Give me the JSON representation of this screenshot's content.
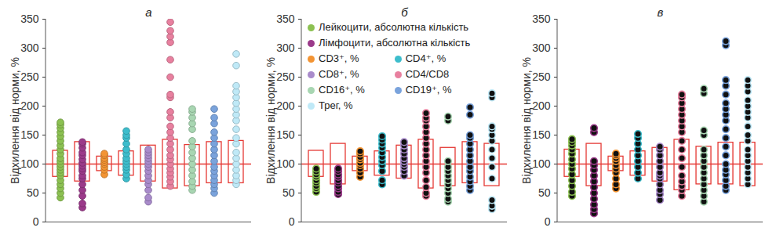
{
  "chart_data": [
    {
      "type": "strip",
      "title": "а",
      "y_label": "Відхилення від норми, %",
      "ylim": [
        0,
        350
      ],
      "yticks": [
        0,
        50,
        100,
        150,
        200,
        250,
        300,
        350
      ],
      "tick_labels": "y",
      "marker": "circle",
      "reference_line": 100,
      "series": [
        {
          "name": "Лейкоцити, абсолютна кількість",
          "color": "#8cc152",
          "range": [
            78,
            123
          ],
          "values": [
            42,
            50,
            58,
            65,
            72,
            80,
            85,
            90,
            95,
            100,
            105,
            110,
            118,
            125,
            132,
            140,
            148,
            155,
            162,
            168,
            172
          ]
        },
        {
          "name": "Лімфоцити, абсолютна кількість",
          "color": "#9b3a8a",
          "range": [
            70,
            138
          ],
          "values": [
            25,
            32,
            45,
            55,
            65,
            75,
            80,
            88,
            92,
            97,
            102,
            108,
            115,
            120,
            128,
            135,
            138
          ]
        },
        {
          "name": "CD3⁺, %",
          "color": "#f39433",
          "range": [
            88,
            113
          ],
          "values": [
            82,
            90,
            95,
            100,
            103,
            107,
            110,
            115,
            118
          ]
        },
        {
          "name": "CD4⁺, %",
          "color": "#3dbdcc",
          "range": [
            80,
            122
          ],
          "values": [
            75,
            82,
            90,
            95,
            100,
            105,
            110,
            118,
            125,
            135,
            145,
            150,
            157
          ]
        },
        {
          "name": "CD8⁺, %",
          "color": "#a98bcb",
          "range": [
            70,
            132
          ],
          "values": [
            35,
            42,
            55,
            65,
            72,
            80,
            88,
            95,
            100,
            105,
            110,
            115,
            120,
            125
          ]
        },
        {
          "name": "CD4/CD8",
          "color": "#e8809f",
          "range": [
            58,
            142
          ],
          "values": [
            62,
            70,
            78,
            85,
            92,
            100,
            108,
            115,
            125,
            135,
            145,
            155,
            165,
            180,
            190,
            215,
            220,
            250,
            280,
            310,
            320,
            330,
            345
          ]
        },
        {
          "name": "CD16⁺, %",
          "color": "#a8d6b2",
          "range": [
            62,
            133
          ],
          "values": [
            55,
            62,
            70,
            80,
            90,
            100,
            110,
            120,
            130,
            140,
            160,
            170,
            180,
            190,
            195
          ]
        },
        {
          "name": "CD19⁺, %",
          "color": "#7aa3dc",
          "range": [
            67,
            138
          ],
          "values": [
            50,
            58,
            65,
            72,
            80,
            88,
            95,
            105,
            115,
            125,
            135,
            145,
            155,
            170,
            180,
            195
          ]
        },
        {
          "name": "Трег, %",
          "color": "#bfe9f7",
          "range": [
            67,
            140
          ],
          "values": [
            65,
            72,
            80,
            90,
            100,
            110,
            120,
            135,
            145,
            160,
            175,
            185,
            195,
            205,
            215,
            225,
            235,
            270,
            290
          ]
        }
      ]
    },
    {
      "type": "strip",
      "title": "б",
      "y_label": "Відхилення від норми, %",
      "ylim": [
        0,
        350
      ],
      "yticks": [
        0,
        50,
        100,
        150,
        200,
        250,
        300,
        350
      ],
      "tick_labels": "y",
      "marker": "dark",
      "reference_line": 100,
      "legend": "top-left",
      "series": [
        {
          "name": "Лейкоцити, абсолютна кількість",
          "color": "#8cc152",
          "range": [
            78,
            123
          ],
          "values": [
            52,
            58,
            62,
            68,
            72,
            78,
            82,
            87,
            92
          ]
        },
        {
          "name": "Лімфоцити, абсолютна кількість",
          "color": "#9b3a8a",
          "range": [
            65,
            135
          ],
          "values": [
            48,
            52,
            58,
            62,
            68,
            72,
            78,
            82,
            88,
            92
          ]
        },
        {
          "name": "CD3⁺, %",
          "color": "#f39433",
          "range": [
            88,
            113
          ],
          "values": [
            78,
            85,
            92,
            98,
            102,
            108,
            112,
            118,
            122
          ]
        },
        {
          "name": "CD4⁺, %",
          "color": "#3dbdcc",
          "range": [
            80,
            122
          ],
          "values": [
            65,
            72,
            88,
            98,
            105,
            112,
            120,
            128,
            135,
            142,
            148
          ]
        },
        {
          "name": "CD8⁺, %",
          "color": "#a98bcb",
          "range": [
            75,
            132
          ],
          "values": [
            80,
            88,
            95,
            100,
            105,
            110,
            118,
            125,
            132,
            138
          ]
        },
        {
          "name": "CD4/CD8",
          "color": "#e8809f",
          "range": [
            58,
            142
          ],
          "values": [
            45,
            50,
            60,
            72,
            85,
            95,
            105,
            115,
            125,
            135,
            145,
            155,
            165,
            175,
            180,
            188
          ]
        },
        {
          "name": "CD16⁺, %",
          "color": "#a8d6b2",
          "range": [
            62,
            128
          ],
          "values": [
            35,
            40,
            50,
            58,
            65,
            72,
            80,
            88,
            95,
            105,
            175,
            182
          ]
        },
        {
          "name": "CD19⁺, %",
          "color": "#7aa3dc",
          "range": [
            67,
            138
          ],
          "values": [
            55,
            62,
            70,
            78,
            88,
            95,
            105,
            115,
            125,
            135,
            145,
            150,
            185,
            198
          ]
        },
        {
          "name": "Трег, %",
          "color": "#bfe9f7",
          "range": [
            62,
            135
          ],
          "values": [
            22,
            28,
            38,
            75,
            95,
            110,
            125,
            140,
            150,
            160,
            165,
            215,
            222
          ]
        }
      ]
    },
    {
      "type": "strip",
      "title": "в",
      "y_label": "Відхилення від норми, %",
      "ylim": [
        0,
        350
      ],
      "yticks": [
        0,
        50,
        100,
        150,
        200,
        250,
        300,
        350
      ],
      "tick_labels": "y",
      "marker": "dark",
      "reference_line": 100,
      "series": [
        {
          "name": "Лейкоцити, абсолютна кількість",
          "color": "#8cc152",
          "range": [
            78,
            125
          ],
          "values": [
            45,
            52,
            62,
            72,
            82,
            92,
            100,
            108,
            118,
            125,
            132,
            138,
            143
          ]
        },
        {
          "name": "Лімфоцити, абсолютна кількість",
          "color": "#9b3a8a",
          "range": [
            62,
            135
          ],
          "values": [
            15,
            22,
            30,
            40,
            50,
            60,
            70,
            80,
            90,
            98,
            105,
            155,
            162
          ]
        },
        {
          "name": "CD3⁺, %",
          "color": "#f39433",
          "range": [
            88,
            113
          ],
          "values": [
            58,
            65,
            75,
            85,
            92,
            98,
            105,
            110,
            115,
            118
          ]
        },
        {
          "name": "CD4⁺, %",
          "color": "#3dbdcc",
          "range": [
            80,
            122
          ],
          "values": [
            75,
            85,
            95,
            105,
            115,
            125,
            135,
            145,
            152
          ]
        },
        {
          "name": "CD8⁺, %",
          "color": "#a98bcb",
          "range": [
            70,
            128
          ],
          "values": [
            38,
            48,
            55,
            65,
            75,
            80,
            85,
            95,
            105,
            115,
            125,
            130
          ]
        },
        {
          "name": "CD4/CD8",
          "color": "#e8809f",
          "range": [
            55,
            142
          ],
          "values": [
            45,
            55,
            62,
            70,
            80,
            95,
            110,
            125,
            140,
            155,
            165,
            175,
            185,
            195,
            205,
            215,
            220
          ]
        },
        {
          "name": "CD16⁺, %",
          "color": "#a8d6b2",
          "range": [
            65,
            130
          ],
          "values": [
            35,
            45,
            55,
            65,
            75,
            85,
            95,
            105,
            115,
            125,
            150,
            158,
            222,
            230
          ]
        },
        {
          "name": "CD19⁺, %",
          "color": "#7aa3dc",
          "range": [
            65,
            137
          ],
          "values": [
            55,
            62,
            72,
            82,
            90,
            100,
            115,
            130,
            145,
            160,
            175,
            185,
            195,
            205,
            220,
            235,
            245,
            305,
            312
          ]
        },
        {
          "name": "Трег, %",
          "color": "#bfe9f7",
          "range": [
            62,
            137
          ],
          "values": [
            65,
            75,
            85,
            95,
            105,
            115,
            125,
            140,
            150,
            165,
            180,
            190,
            200,
            210,
            225,
            235,
            245
          ]
        }
      ]
    }
  ]
}
